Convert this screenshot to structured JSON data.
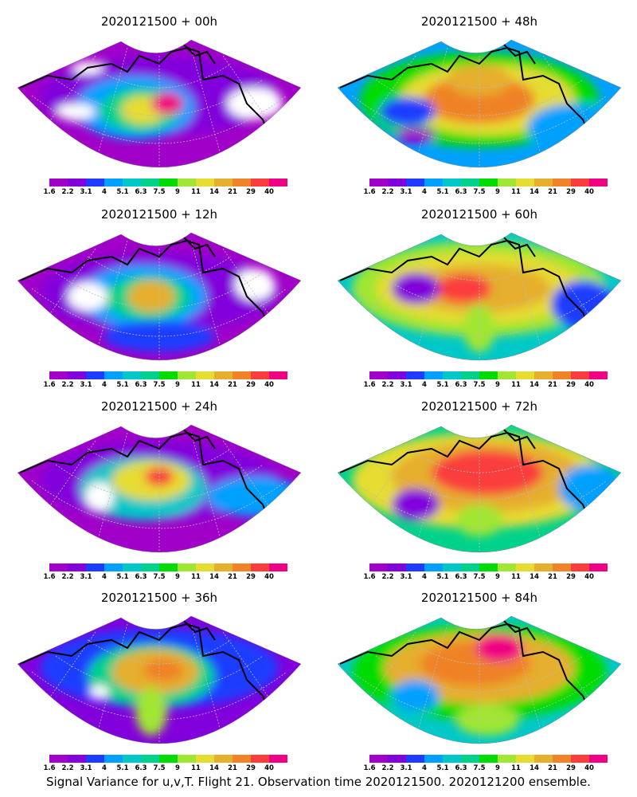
{
  "colorbar": {
    "colors": [
      "#a000c8",
      "#8200dc",
      "#1e3cff",
      "#00a0ff",
      "#00c8c8",
      "#00d28c",
      "#00dc00",
      "#a0e632",
      "#e6dc32",
      "#e6af2d",
      "#f08228",
      "#fa3c3c",
      "#f00082"
    ],
    "labels": [
      "1.6",
      "2.2",
      "3.1",
      "4",
      "5.1",
      "6.3",
      "7.5",
      "9",
      "11",
      "14",
      "21",
      "29",
      "40"
    ]
  },
  "panels": [
    {
      "title": "2020121500 + 00h"
    },
    {
      "title": "2020121500 + 48h"
    },
    {
      "title": "2020121500 + 12h"
    },
    {
      "title": "2020121500 + 60h"
    },
    {
      "title": "2020121500 + 24h"
    },
    {
      "title": "2020121500 + 72h"
    },
    {
      "title": "2020121500 + 36h"
    },
    {
      "title": "2020121500 + 84h"
    }
  ],
  "caption": "Signal Variance for u,v,T. Flight 21. Observation time 2020121500. 2020121200 ensemble."
}
